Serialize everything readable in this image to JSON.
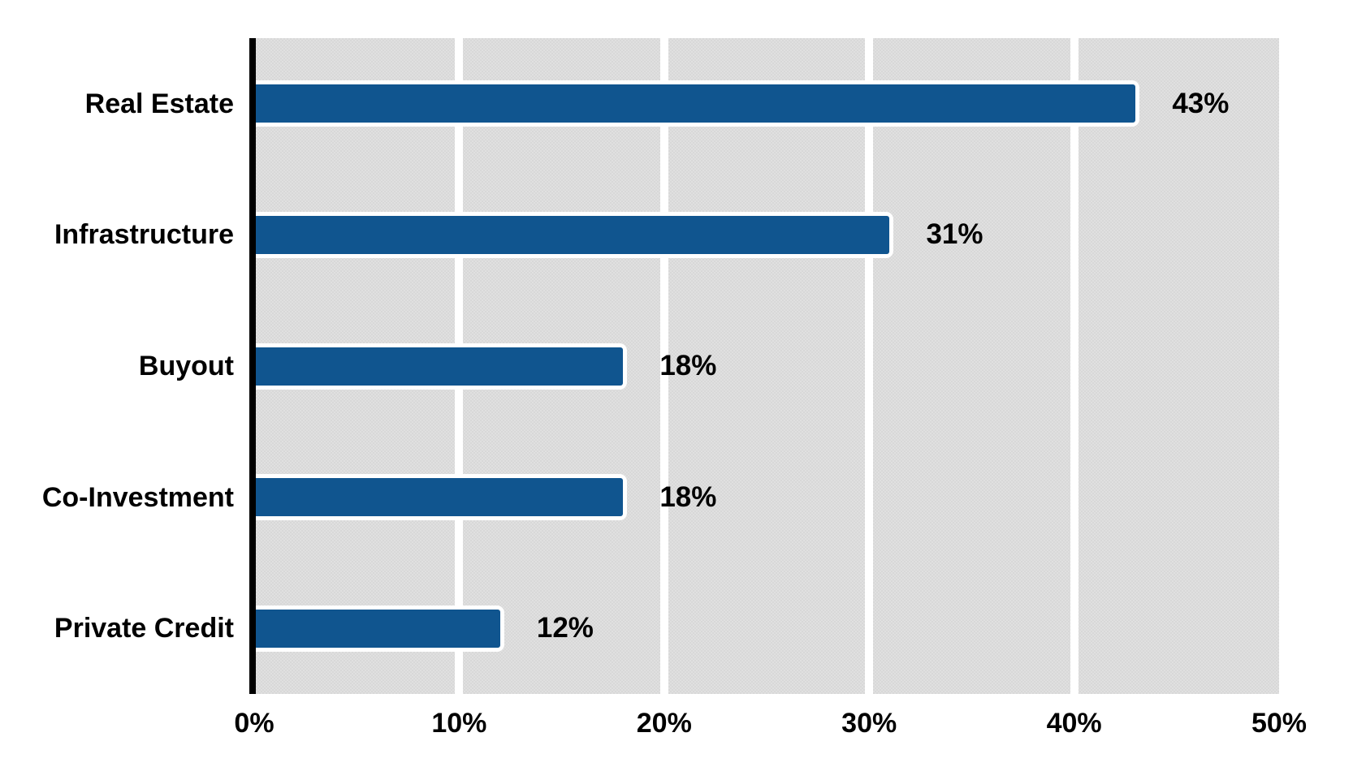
{
  "chart_data": {
    "type": "bar",
    "orientation": "horizontal",
    "title": "",
    "xlabel": "",
    "ylabel": "",
    "categories": [
      "Real Estate",
      "Infrastructure",
      "Buyout",
      "Co-Investment",
      "Private Credit"
    ],
    "values": [
      43,
      31,
      18,
      18,
      12
    ],
    "value_labels": [
      "43%",
      "31%",
      "18%",
      "18%",
      "12%"
    ],
    "xlim": [
      0,
      50
    ],
    "x_ticks": [
      0,
      10,
      20,
      30,
      40,
      50
    ],
    "x_tick_labels": [
      "0%",
      "10%",
      "20%",
      "30%",
      "40%",
      "50%"
    ],
    "grid": true,
    "gridline_orientation": "vertical",
    "legend": "none",
    "colors": {
      "bar_fill": "#10558F",
      "bar_outline": "#FFFFFF",
      "plot_background": "#DBDBDB",
      "gridline": "#FFFFFF",
      "axis_line": "#000000",
      "text": "#000000",
      "page_background": "#FFFFFF"
    }
  }
}
